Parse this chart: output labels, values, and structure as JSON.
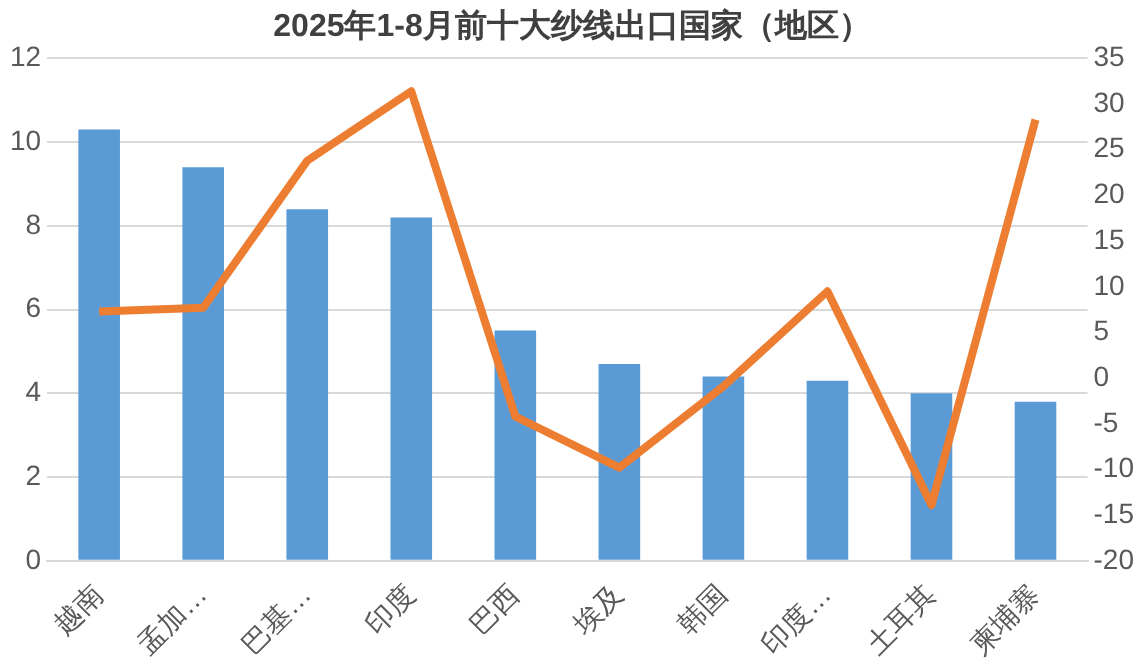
{
  "chart_data": {
    "type": "bar",
    "title": "2025年1-8月前十大纱线出口国家（地区）",
    "categories": [
      "越南",
      "孟加…",
      "巴基…",
      "印度",
      "巴西",
      "埃及",
      "韩国",
      "印度…",
      "土耳其",
      "柬埔寨"
    ],
    "series": [
      {
        "color": "#5b9bd5",
        "values": [
          10.3,
          9.4,
          8.4,
          8.2,
          5.5,
          4.7,
          4.4,
          4.3,
          4.0,
          3.8
        ]
      },
      {
        "type": "line",
        "axis": "y2",
        "color": "#ed7d31",
        "values": [
          7.3,
          7.7,
          23.8,
          31.4,
          -4.2,
          -9.8,
          -0.9,
          9.5,
          -13.9,
          28.3
        ]
      }
    ],
    "ylim": [
      0,
      12
    ],
    "yticks": [
      0,
      2,
      4,
      6,
      8,
      10,
      12
    ],
    "y2lim": [
      -20,
      35
    ],
    "y2ticks": [
      -20,
      -15,
      -10,
      -5,
      0,
      5,
      10,
      15,
      20,
      25,
      30,
      35
    ],
    "grid": "y",
    "legend": false,
    "marker": "none"
  }
}
